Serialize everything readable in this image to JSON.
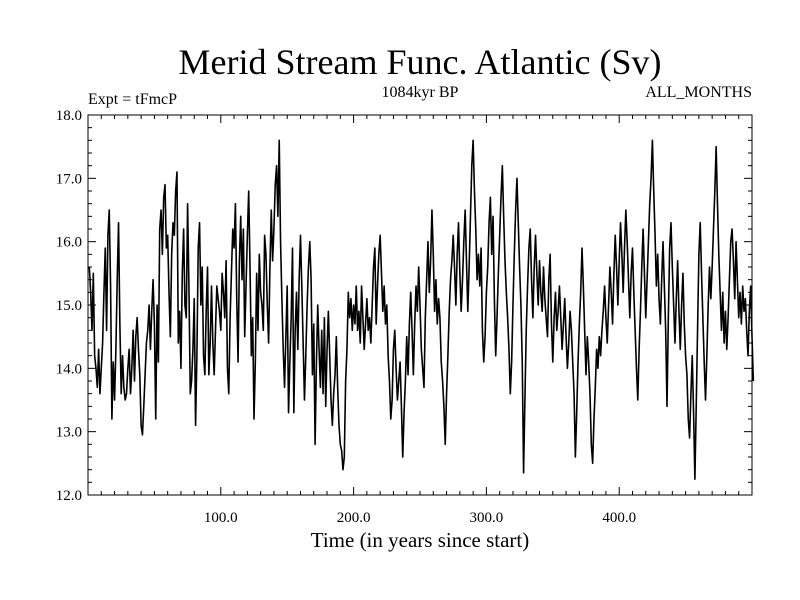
{
  "chart_data": {
    "type": "line",
    "title": "Merid Stream Func. Atlantic (Sv)",
    "subtitle_left": "Expt = tFmcP",
    "subtitle_center": "1084kyr BP",
    "subtitle_right": "ALL_MONTHS",
    "xlabel": "Time (in years since start)",
    "ylabel": "",
    "xlim": [
      0,
      500
    ],
    "ylim": [
      12.0,
      18.0
    ],
    "xticks": [
      100,
      200,
      300,
      400
    ],
    "xtick_labels": [
      "100.0",
      "200.0",
      "300.0",
      "400.0"
    ],
    "yticks": [
      12,
      13,
      14,
      15,
      16,
      17,
      18
    ],
    "ytick_labels": [
      "12.0",
      "13.0",
      "14.0",
      "15.0",
      "16.0",
      "17.0",
      "18.0"
    ],
    "series": [
      {
        "name": "Merid Stream Func. Atlantic",
        "x_start": 1,
        "x_step": 1,
        "values": [
          15.6,
          15.2,
          14.6,
          15.5,
          14.2,
          14.0,
          13.7,
          14.3,
          13.6,
          14.0,
          14.4,
          15.2,
          15.9,
          14.6,
          16.1,
          16.5,
          15.3,
          13.2,
          14.1,
          13.5,
          14.3,
          15.4,
          16.3,
          14.7,
          13.6,
          14.2,
          13.7,
          13.5,
          13.6,
          14.0,
          14.3,
          13.6,
          14.0,
          14.6,
          13.8,
          14.5,
          14.8,
          14.3,
          13.9,
          13.1,
          12.95,
          13.4,
          13.9,
          14.4,
          14.6,
          15.0,
          14.3,
          14.9,
          15.4,
          14.7,
          13.2,
          15.0,
          14.1,
          16.2,
          16.5,
          15.8,
          16.7,
          16.9,
          15.9,
          16.1,
          15.2,
          14.5,
          15.8,
          16.3,
          16.1,
          16.8,
          17.1,
          14.4,
          14.9,
          14.0,
          15.5,
          16.2,
          15.0,
          14.8,
          16.6,
          15.3,
          13.6,
          13.8,
          14.3,
          15.1,
          13.1,
          14.2,
          15.9,
          16.3,
          15.0,
          15.6,
          14.2,
          13.9,
          14.9,
          15.6,
          13.9,
          14.4,
          15.3,
          14.4,
          13.9,
          14.6,
          15.3,
          15.1,
          14.9,
          14.6,
          15.5,
          15.2,
          14.8,
          15.7,
          14.0,
          13.6,
          14.8,
          15.5,
          16.2,
          15.9,
          16.6,
          15.1,
          14.1,
          15.7,
          16.4,
          15.4,
          16.2,
          14.5,
          15.3,
          16.1,
          16.8,
          15.6,
          14.2,
          14.8,
          13.2,
          14.1,
          15.5,
          14.6,
          15.8,
          15.2,
          15.0,
          14.6,
          16.1,
          15.8,
          15.0,
          14.4,
          15.6,
          16.5,
          15.7,
          16.2,
          16.9,
          17.2,
          16.4,
          17.6,
          16.0,
          15.1,
          14.3,
          13.7,
          14.5,
          15.3,
          13.3,
          14.1,
          14.8,
          15.9,
          13.3,
          14.6,
          15.2,
          14.3,
          15.4,
          16.1,
          15.3,
          14.4,
          13.5,
          14.2,
          15.0,
          15.6,
          16.0,
          15.4,
          13.9,
          14.7,
          12.8,
          14.1,
          15.0,
          14.3,
          13.7,
          14.6,
          13.6,
          14.8,
          13.4,
          14.3,
          14.9,
          14.2,
          13.5,
          13.1,
          13.6,
          13.9,
          14.5,
          13.7,
          13.1,
          12.8,
          12.7,
          12.4,
          12.6,
          13.8,
          14.3,
          15.2,
          14.8,
          15.1,
          14.6,
          15.0,
          14.7,
          15.3,
          14.6,
          14.9,
          14.4,
          15.3,
          14.8,
          14.3,
          14.7,
          15.1,
          14.6,
          14.8,
          14.4,
          15.0,
          15.6,
          15.9,
          14.7,
          15.3,
          15.8,
          16.1,
          15.5,
          14.9,
          15.3,
          14.7,
          15.0,
          14.2,
          13.8,
          13.2,
          13.5,
          14.3,
          14.6,
          14.0,
          13.5,
          13.8,
          14.1,
          13.4,
          12.6,
          13.3,
          13.8,
          14.5,
          13.9,
          14.7,
          15.2,
          14.6,
          13.9,
          14.7,
          15.3,
          14.9,
          15.6,
          15.0,
          14.3,
          14.0,
          13.7,
          14.8,
          15.4,
          16.0,
          15.2,
          15.7,
          16.5,
          15.8,
          14.9,
          15.4,
          14.7,
          15.1,
          14.8,
          14.1,
          13.8,
          13.4,
          12.8,
          13.6,
          14.2,
          14.9,
          15.4,
          15.7,
          16.1,
          15.6,
          15.0,
          15.8,
          16.3,
          15.5,
          14.9,
          15.4,
          16.0,
          16.5,
          15.7,
          14.9,
          15.6,
          16.4,
          17.2,
          17.6,
          16.8,
          16.2,
          15.4,
          15.8,
          15.3,
          15.9,
          14.6,
          14.1,
          14.5,
          15.2,
          15.6,
          16.3,
          16.7,
          15.8,
          16.4,
          15.1,
          14.2,
          14.8,
          15.5,
          16.1,
          16.7,
          17.2,
          16.4,
          15.7,
          15.2,
          14.8,
          14.3,
          13.6,
          14.1,
          15.0,
          15.8,
          16.5,
          17.0,
          16.3,
          15.6,
          15.0,
          14.1,
          12.35,
          13.5,
          14.6,
          15.3,
          15.9,
          16.2,
          15.4,
          14.8,
          15.6,
          16.1,
          15.5,
          15.0,
          15.7,
          15.2,
          14.9,
          15.6,
          15.1,
          14.8,
          14.5,
          15.4,
          15.8,
          14.7,
          14.1,
          14.8,
          15.2,
          14.6,
          14.9,
          15.3,
          14.8,
          14.3,
          14.7,
          15.1,
          14.5,
          14.0,
          14.4,
          14.9,
          14.6,
          14.1,
          13.6,
          12.6,
          13.3,
          14.1,
          14.7,
          15.2,
          15.9,
          15.3,
          14.6,
          13.9,
          14.5,
          14.1,
          13.6,
          12.8,
          12.5,
          13.2,
          13.7,
          14.3,
          14.0,
          14.5,
          14.2,
          14.6,
          14.9,
          15.3,
          14.8,
          14.4,
          15.0,
          15.6,
          15.2,
          14.7,
          15.5,
          16.1,
          15.6,
          15.0,
          15.7,
          16.3,
          15.8,
          15.2,
          15.9,
          16.5,
          16.0,
          15.4,
          14.8,
          15.5,
          15.9,
          15.2,
          14.6,
          14.0,
          13.5,
          14.3,
          14.9,
          15.6,
          16.2,
          15.5,
          14.8,
          15.4,
          16.0,
          16.6,
          17.0,
          17.6,
          16.8,
          16.1,
          15.3,
          15.8,
          15.1,
          14.7,
          15.4,
          16.0,
          15.3,
          14.6,
          13.4,
          14.8,
          15.9,
          16.3,
          15.6,
          15.0,
          14.4,
          15.1,
          15.7,
          14.9,
          14.3,
          15.0,
          15.5,
          14.7,
          14.2,
          13.9,
          13.2,
          12.9,
          13.6,
          14.2,
          13.3,
          12.25,
          13.4,
          14.6,
          15.8,
          16.3,
          15.5,
          14.8,
          14.1,
          13.5,
          14.2,
          15.0,
          15.6,
          15.1,
          15.6,
          16.2,
          16.8,
          17.5,
          16.6,
          15.8,
          15.2,
          14.6,
          15.2,
          14.4,
          14.9,
          14.3,
          14.8,
          15.4,
          16.0,
          16.2,
          15.7,
          15.1,
          16.0,
          15.4,
          14.8,
          15.2,
          14.7,
          15.3,
          14.9,
          15.1,
          14.6,
          14.2,
          14.9,
          15.3,
          14.5,
          13.8
        ]
      }
    ]
  }
}
